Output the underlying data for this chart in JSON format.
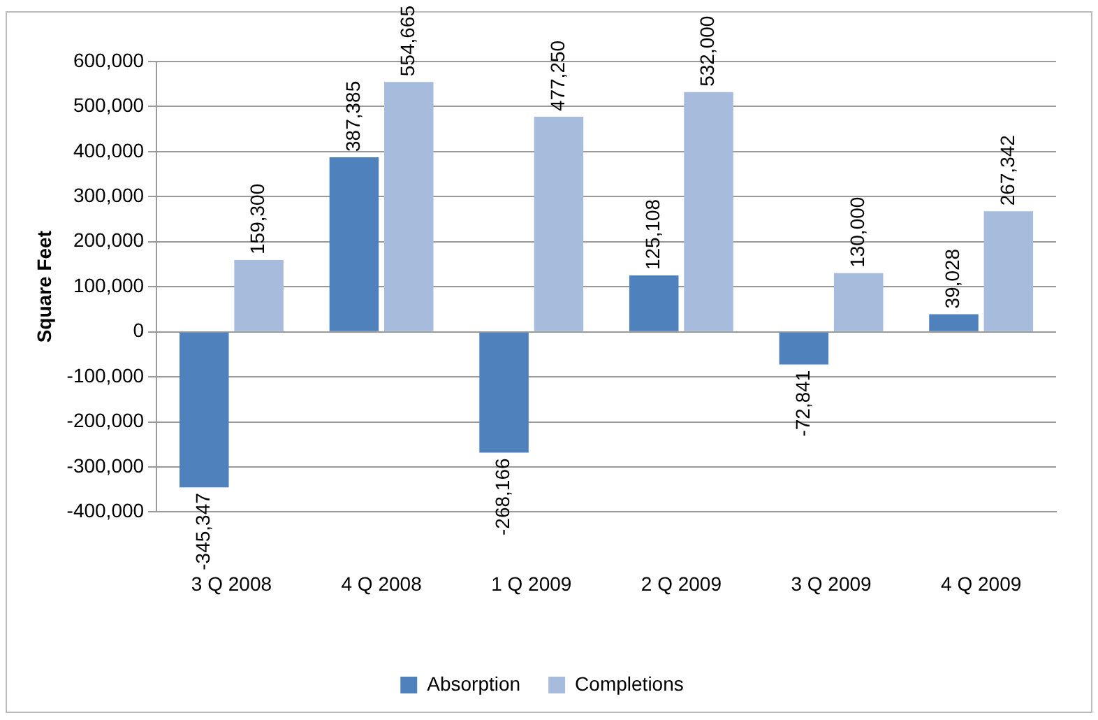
{
  "chart_data": {
    "type": "bar",
    "ylabel": "Square Feet",
    "categories": [
      "3 Q 2008",
      "4 Q 2008",
      "1 Q 2009",
      "2 Q 2009",
      "3 Q 2009",
      "4 Q 2009"
    ],
    "series": [
      {
        "name": "Absorption",
        "color": "#4f81bd",
        "values": [
          -345347,
          387385,
          -268166,
          125108,
          -72841,
          39028
        ],
        "value_labels": [
          "-345,347",
          "387,385",
          "-268,166",
          "125,108",
          "-72,841",
          "39,028"
        ]
      },
      {
        "name": "Completions",
        "color": "#a7bcdc",
        "values": [
          159300,
          554665,
          477250,
          532000,
          130000,
          267342
        ],
        "value_labels": [
          "159,300",
          "554,665",
          "477,250",
          "532,000",
          "130,000",
          "267,342"
        ]
      }
    ],
    "ylim": [
      -400000,
      600000
    ],
    "yticks": [
      {
        "value": -400000,
        "label": "-400,000"
      },
      {
        "value": -300000,
        "label": "-300,000"
      },
      {
        "value": -200000,
        "label": "-200,000"
      },
      {
        "value": -100000,
        "label": "-100,000"
      },
      {
        "value": 0,
        "label": "0"
      },
      {
        "value": 100000,
        "label": "100,000"
      },
      {
        "value": 200000,
        "label": "200,000"
      },
      {
        "value": 300000,
        "label": "300,000"
      },
      {
        "value": 400000,
        "label": "400,000"
      },
      {
        "value": 500000,
        "label": "500,000"
      },
      {
        "value": 600000,
        "label": "600,000"
      }
    ],
    "grid": "y",
    "legend": "bottom"
  }
}
